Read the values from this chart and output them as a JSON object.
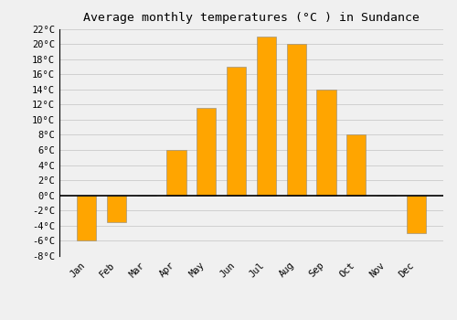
{
  "months": [
    "Jan",
    "Feb",
    "Mar",
    "Apr",
    "May",
    "Jun",
    "Jul",
    "Aug",
    "Sep",
    "Oct",
    "Nov",
    "Dec"
  ],
  "temperatures": [
    -6,
    -3.5,
    0,
    6,
    11.5,
    17,
    21,
    20,
    14,
    8,
    0,
    -5
  ],
  "bar_color": "#FFA500",
  "bar_color_dark": "#E08000",
  "bar_edge_color": "#888888",
  "background_color": "#f0f0f0",
  "grid_color": "#d0d0d0",
  "title": "Average monthly temperatures (°C ) in Sundance",
  "ylim": [
    -8,
    22
  ],
  "yticks": [
    -8,
    -6,
    -4,
    -2,
    0,
    2,
    4,
    6,
    8,
    10,
    12,
    14,
    16,
    18,
    20,
    22
  ],
  "ytick_labels": [
    "-8°C",
    "-6°C",
    "-4°C",
    "-2°C",
    "0°C",
    "2°C",
    "4°C",
    "6°C",
    "8°C",
    "10°C",
    "12°C",
    "14°C",
    "16°C",
    "18°C",
    "20°C",
    "22°C"
  ],
  "title_fontsize": 9.5,
  "tick_fontsize": 7.5,
  "bar_width": 0.65
}
